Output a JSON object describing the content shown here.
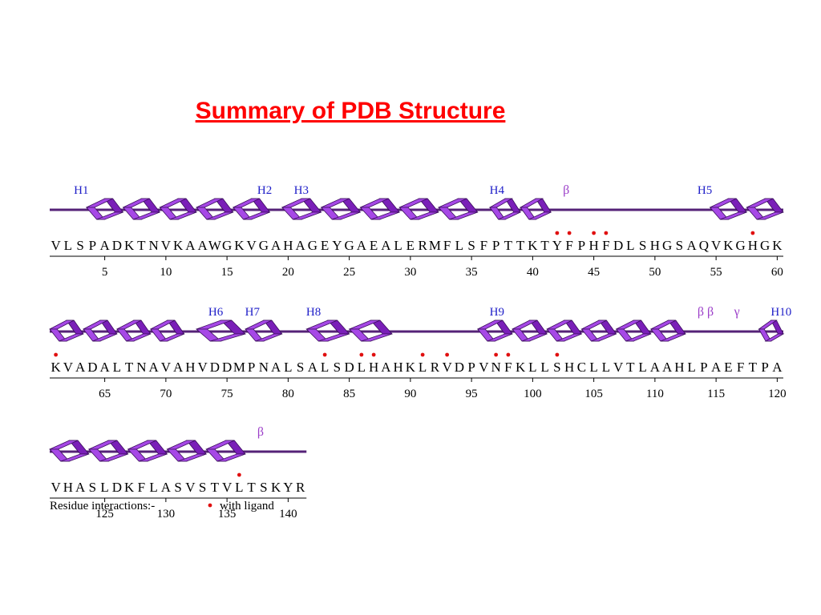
{
  "title": "Summary of PDB Structure",
  "colors": {
    "title": "#ff0000",
    "helix": "#a648e6",
    "helix_dark": "#7a1fb8",
    "label": "#1e1ec8",
    "ligand_dot": "#e01010",
    "strand_label": "#9c3fc9"
  },
  "rows": [
    {
      "sequence": "VLSPADKTNVKAAWGKVGAHAGEYGAEALERMFLSFPTTKTYFPHFDLSHGSAQVKGHGK",
      "start": 1,
      "ticks": [
        "5",
        "10",
        "15",
        "20",
        "25",
        "30",
        "35",
        "40",
        "45",
        "50",
        "55",
        "60"
      ],
      "ss_labels": [
        {
          "text": "H1",
          "pos": 3
        },
        {
          "text": "H2",
          "pos": 18
        },
        {
          "text": "H3",
          "pos": 21
        },
        {
          "text": "H4",
          "pos": 37
        },
        {
          "text": "β",
          "pos": 43,
          "kind": "strand"
        },
        {
          "text": "H5",
          "pos": 54
        }
      ],
      "helices": [
        [
          4,
          18
        ],
        [
          20,
          35
        ],
        [
          37,
          41
        ],
        [
          55,
          60
        ]
      ],
      "ligand": [
        42,
        43,
        45,
        46,
        58
      ]
    },
    {
      "sequence": "KVADALTNAVAHVDDMPNALSALSDLHAHKLRVDPVNFKLLSHCLLVTLAAHLPAEFTPA",
      "start": 61,
      "ticks": [
        "65",
        "70",
        "75",
        "80",
        "85",
        "90",
        "95",
        "100",
        "105",
        "110",
        "115",
        "120"
      ],
      "ss_labels": [
        {
          "text": "H6",
          "pos": 74
        },
        {
          "text": "H7",
          "pos": 77
        },
        {
          "text": "H8",
          "pos": 82
        },
        {
          "text": "H9",
          "pos": 97
        },
        {
          "text": "β β",
          "pos": 114,
          "kind": "strand"
        },
        {
          "text": "γ",
          "pos": 117,
          "kind": "strand"
        },
        {
          "text": "H10",
          "pos": 120
        }
      ],
      "helices": [
        [
          61,
          71
        ],
        [
          73,
          76
        ],
        [
          77,
          79
        ],
        [
          82,
          88
        ],
        [
          96,
          112
        ],
        [
          119,
          120
        ]
      ],
      "ligand": [
        61,
        83,
        86,
        87,
        91,
        93,
        97,
        98,
        102
      ]
    },
    {
      "sequence": "VHASLDKFLASVSTVLTSKYR",
      "start": 121,
      "ticks": [
        "125",
        "130",
        "135",
        "140"
      ],
      "ss_labels": [
        {
          "text": "β",
          "pos": 138,
          "kind": "strand"
        }
      ],
      "helices": [
        [
          121,
          136
        ]
      ],
      "ligand": [
        136
      ]
    }
  ],
  "legend": {
    "text": "Residue interactions:-",
    "item": "with ligand"
  }
}
